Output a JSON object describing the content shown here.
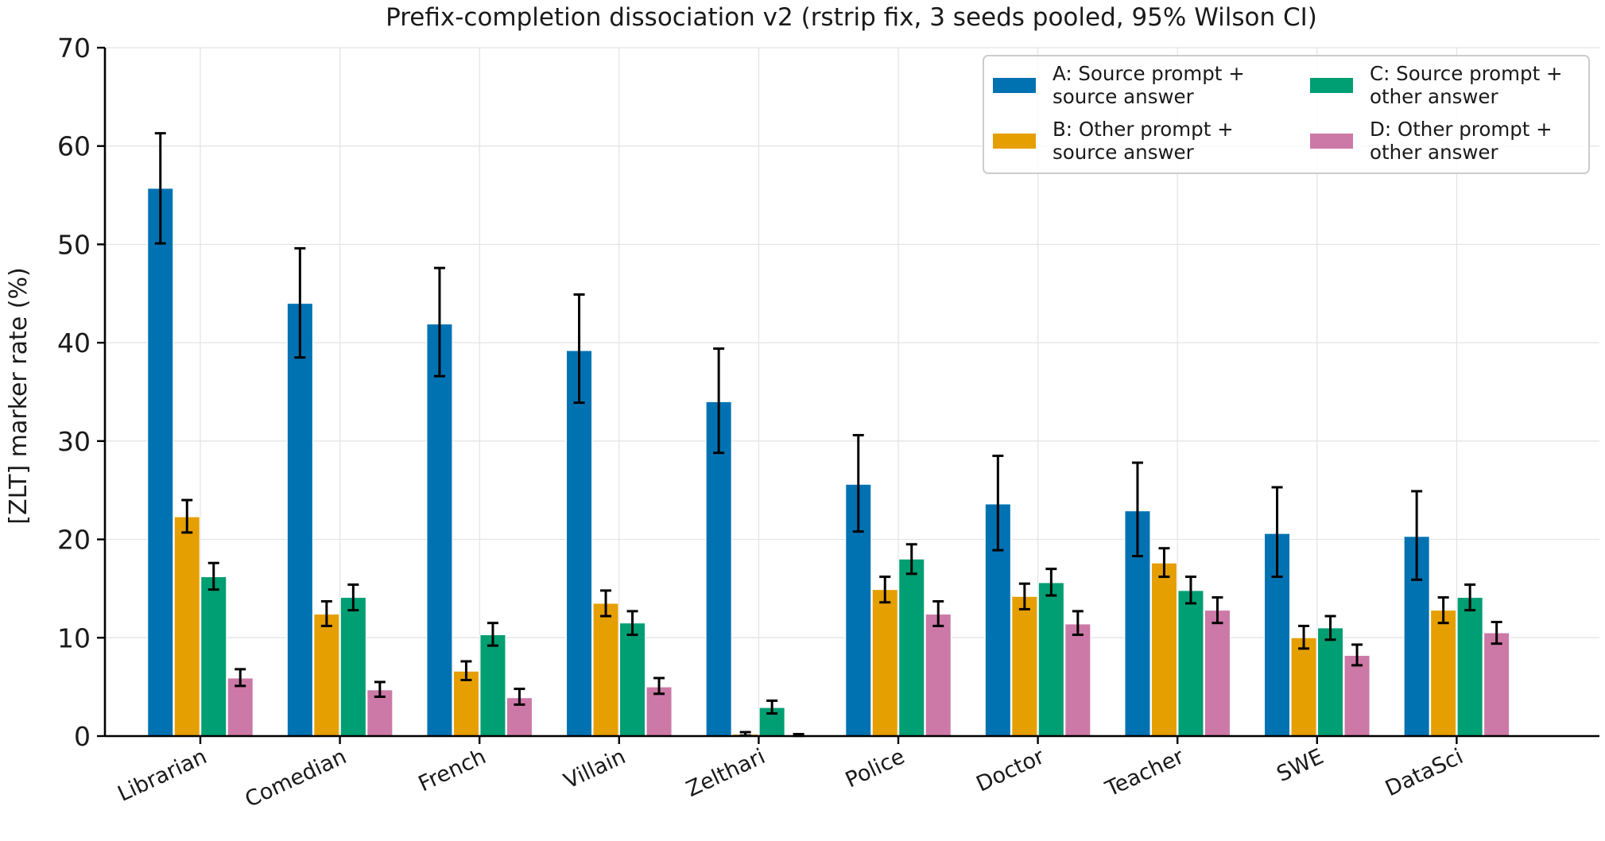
{
  "chart_data": {
    "type": "bar",
    "title": "Prefix-completion dissociation v2 (rstrip fix, 3 seeds pooled, 95% Wilson CI)",
    "xlabel": "",
    "ylabel": "[ZLT] marker rate (%)",
    "ylim": [
      0,
      70
    ],
    "yticks": [
      "0",
      "10",
      "20",
      "30",
      "40",
      "50",
      "60",
      "70"
    ],
    "grid": true,
    "legend_position": "top-right",
    "categories": [
      "Librarian",
      "Comedian",
      "French",
      "Villain",
      "Zelthari",
      "Police",
      "Doctor",
      "Teacher",
      "SWE",
      "DataSci"
    ],
    "series": [
      {
        "name": "A: Source prompt + source answer",
        "legend_lines": [
          "A: Source prompt +",
          "source answer"
        ],
        "color": "#0072b2",
        "values": [
          55.7,
          44.0,
          41.9,
          39.2,
          34.0,
          25.6,
          23.6,
          22.9,
          20.6,
          20.3
        ],
        "ci_low": [
          50.1,
          38.5,
          36.6,
          33.9,
          28.8,
          20.8,
          18.9,
          18.3,
          16.2,
          15.9
        ],
        "ci_high": [
          61.3,
          49.6,
          47.6,
          44.9,
          39.4,
          30.6,
          28.5,
          27.8,
          25.3,
          24.9
        ]
      },
      {
        "name": "B: Other prompt + source answer",
        "legend_lines": [
          "B: Other prompt +",
          "source answer"
        ],
        "color": "#e69f00",
        "values": [
          22.3,
          12.4,
          6.6,
          13.5,
          0.2,
          14.9,
          14.2,
          17.6,
          10.0,
          12.8
        ],
        "ci_low": [
          20.7,
          11.2,
          5.7,
          12.2,
          0.05,
          13.6,
          12.9,
          16.2,
          8.9,
          11.5
        ],
        "ci_high": [
          24.0,
          13.7,
          7.6,
          14.8,
          0.4,
          16.2,
          15.5,
          19.1,
          11.2,
          14.1
        ]
      },
      {
        "name": "C: Source prompt + other answer",
        "legend_lines": [
          "C: Source prompt +",
          "other answer"
        ],
        "color": "#009e73",
        "values": [
          16.2,
          14.1,
          10.3,
          11.5,
          2.9,
          18.0,
          15.6,
          14.8,
          11.0,
          14.1
        ],
        "ci_low": [
          14.9,
          12.8,
          9.2,
          10.3,
          2.3,
          16.5,
          14.3,
          13.5,
          9.8,
          12.8
        ],
        "ci_high": [
          17.6,
          15.4,
          11.5,
          12.7,
          3.6,
          19.5,
          17.0,
          16.2,
          12.2,
          15.4
        ]
      },
      {
        "name": "D: Other prompt + other answer",
        "legend_lines": [
          "D: Other prompt +",
          "other answer"
        ],
        "color": "#cc79a7",
        "values": [
          5.9,
          4.7,
          3.9,
          5.0,
          0.1,
          12.4,
          11.4,
          12.8,
          8.2,
          10.5
        ],
        "ci_low": [
          5.1,
          4.0,
          3.2,
          4.3,
          0.02,
          11.2,
          10.3,
          11.5,
          7.2,
          9.4
        ],
        "ci_high": [
          6.8,
          5.5,
          4.8,
          5.9,
          0.2,
          13.7,
          12.7,
          14.1,
          9.3,
          11.6
        ]
      }
    ]
  }
}
